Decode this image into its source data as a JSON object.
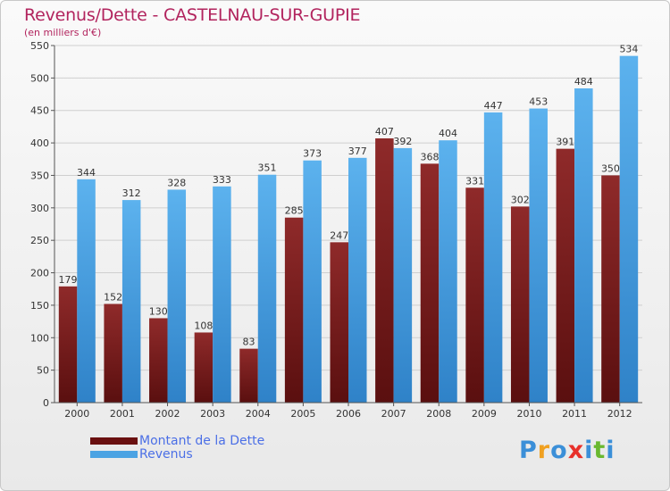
{
  "chart_data": {
    "type": "bar",
    "title": "Revenus/Dette - CASTELNAU-SUR-GUPIE",
    "subtitle": "(en milliers d'€)",
    "categories": [
      "2000",
      "2001",
      "2002",
      "2003",
      "2004",
      "2005",
      "2006",
      "2007",
      "2008",
      "2009",
      "2010",
      "2011",
      "2012"
    ],
    "series": [
      {
        "name": "Montant de la Dette",
        "color": "#7b1e1e",
        "values": [
          179,
          152,
          130,
          108,
          83,
          285,
          247,
          407,
          368,
          331,
          302,
          391,
          350
        ]
      },
      {
        "name": "Revenus",
        "color": "#4ba3e3",
        "values": [
          344,
          312,
          328,
          333,
          351,
          373,
          377,
          392,
          404,
          447,
          453,
          484,
          534
        ]
      }
    ],
    "ylim": [
      0,
      550
    ],
    "yticks": [
      0,
      50,
      100,
      150,
      200,
      250,
      300,
      350,
      400,
      450,
      500,
      550
    ],
    "grid": true,
    "legend_position": "bottom-left"
  },
  "logo": {
    "text": "Proxiti",
    "colors": [
      "#3b8fd8",
      "#f0a020",
      "#3b8fd8",
      "#e8302a",
      "#3b8fd8",
      "#6ab830",
      "#3b8fd8"
    ]
  }
}
